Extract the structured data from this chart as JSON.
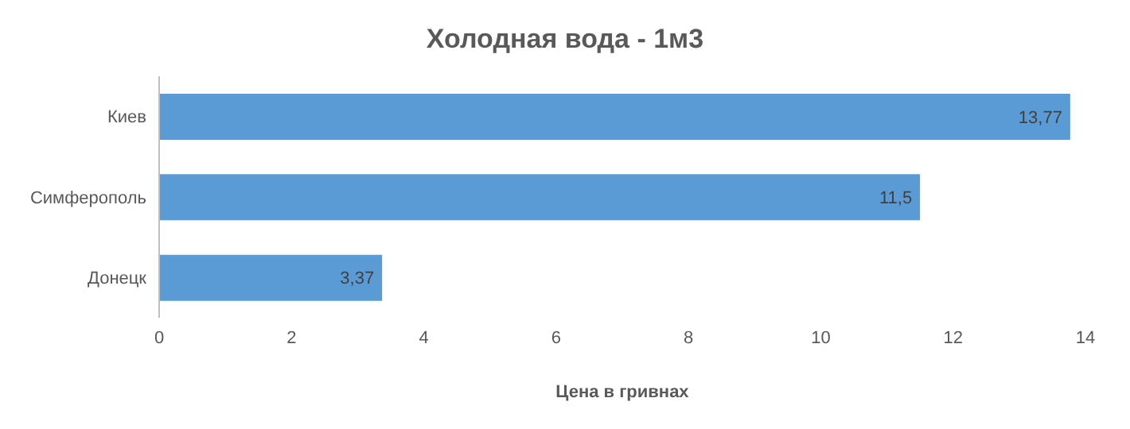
{
  "chart_data": {
    "type": "bar",
    "orientation": "horizontal",
    "title": "Холодная вода - 1м3",
    "xlabel": "Цена в гривнах",
    "categories": [
      "Киев",
      "Симферополь",
      "Донецк"
    ],
    "values": [
      13.77,
      11.5,
      3.37
    ],
    "value_labels": [
      "13,77",
      "11,5",
      "3,37"
    ],
    "color": "#5b9bd5",
    "xlim": [
      0,
      14
    ],
    "xticks": [
      0,
      2,
      4,
      6,
      8,
      10,
      12,
      14
    ],
    "grid": false
  }
}
